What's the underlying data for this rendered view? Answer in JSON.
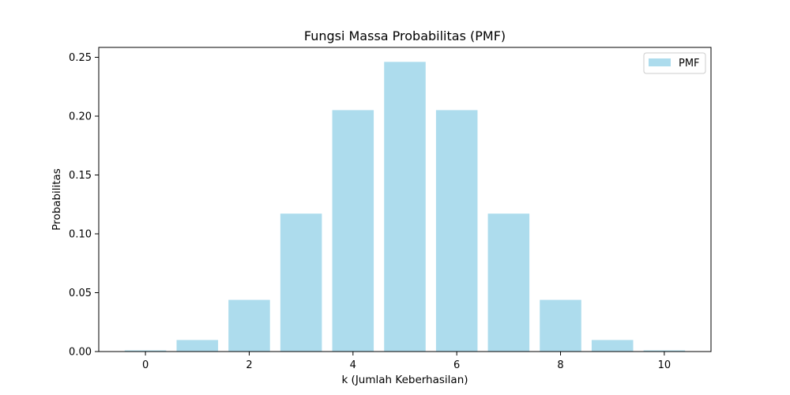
{
  "chart_data": {
    "type": "bar",
    "title": "Fungsi Massa Probabilitas (PMF)",
    "xlabel": "k (Jumlah Keberhasilan)",
    "ylabel": "Probabilitas",
    "x": [
      0,
      1,
      2,
      3,
      4,
      5,
      6,
      7,
      8,
      9,
      10
    ],
    "values": [
      0.001,
      0.0098,
      0.0439,
      0.1172,
      0.2051,
      0.2461,
      0.2051,
      0.1172,
      0.0439,
      0.0098,
      0.001
    ],
    "xlim": [
      -0.9,
      10.9
    ],
    "ylim": [
      0,
      0.2584
    ],
    "xticks": [
      0,
      2,
      4,
      6,
      8,
      10
    ],
    "xtick_labels": [
      "0",
      "2",
      "4",
      "6",
      "8",
      "10"
    ],
    "yticks": [
      0,
      0.05,
      0.1,
      0.15,
      0.2,
      0.25
    ],
    "ytick_labels": [
      "0.00",
      "0.05",
      "0.10",
      "0.15",
      "0.20",
      "0.25"
    ],
    "series": [
      {
        "name": "PMF",
        "color": "#ADDCED"
      }
    ],
    "legend": "top-right",
    "grid": false,
    "bar_color": "#ADDCED"
  }
}
